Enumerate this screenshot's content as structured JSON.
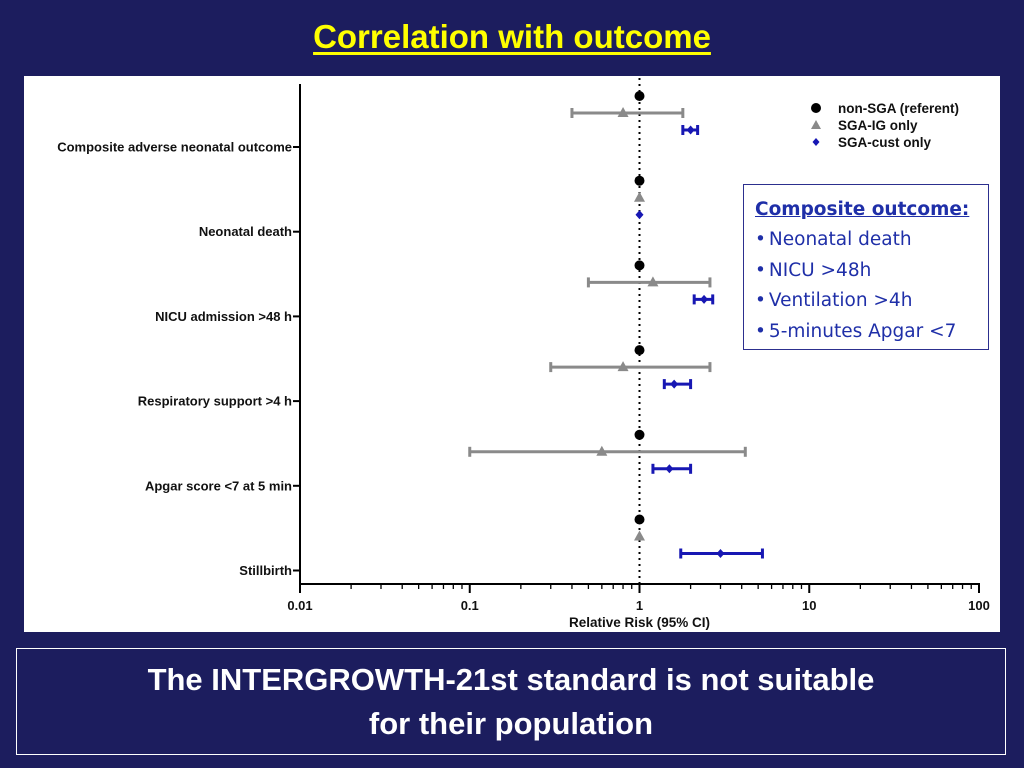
{
  "slide": {
    "title": "Correlation with outcome",
    "conclusion_line1": "The INTERGROWTH-21st standard is not suitable",
    "conclusion_line2": "for their population"
  },
  "composite_box": {
    "title": "Composite outcome:",
    "items": [
      "Neonatal death",
      "NICU >48h",
      "Ventilation >4h",
      "5-minutes Apgar <7"
    ]
  },
  "colors": {
    "background": "#1c1d5e",
    "title": "#ffff00",
    "referent": "#000000",
    "sga_ig": "#8a8a8a",
    "sga_cust": "#1717b3"
  },
  "chart_data": {
    "type": "forest",
    "xlabel": "Relative Risk (95% CI)",
    "xscale": "log",
    "xlim": [
      0.01,
      100
    ],
    "xticks": [
      0.01,
      0.1,
      1,
      10,
      100
    ],
    "xtick_labels": [
      "0.01",
      "0.1",
      "1",
      "10",
      "100"
    ],
    "reference_line": 1,
    "legend_position": "top-right",
    "legend": [
      {
        "key": "referent",
        "label": "non-SGA (referent)",
        "marker": "circle"
      },
      {
        "key": "sga_ig",
        "label": "SGA-IG only",
        "marker": "triangle"
      },
      {
        "key": "sga_cust",
        "label": "SGA-cust only",
        "marker": "diamond"
      }
    ],
    "outcomes": [
      {
        "label": "Composite adverse neonatal outcome",
        "referent": {
          "rr": 1
        },
        "sga_ig": {
          "rr": 0.8,
          "lo": 0.4,
          "hi": 1.8
        },
        "sga_cust": {
          "rr": 2.0,
          "lo": 1.8,
          "hi": 2.2
        }
      },
      {
        "label": "Neonatal death",
        "referent": {
          "rr": 1
        },
        "sga_ig": {
          "rr": 1.0
        },
        "sga_cust": {
          "rr": 1.0
        }
      },
      {
        "label": "NICU admission >48 h",
        "referent": {
          "rr": 1
        },
        "sga_ig": {
          "rr": 1.2,
          "lo": 0.5,
          "hi": 2.6
        },
        "sga_cust": {
          "rr": 2.4,
          "lo": 2.1,
          "hi": 2.7
        }
      },
      {
        "label": "Respiratory support >4 h",
        "referent": {
          "rr": 1
        },
        "sga_ig": {
          "rr": 0.8,
          "lo": 0.3,
          "hi": 2.6
        },
        "sga_cust": {
          "rr": 1.6,
          "lo": 1.4,
          "hi": 2.0
        }
      },
      {
        "label": "Apgar score <7 at 5 min",
        "referent": {
          "rr": 1
        },
        "sga_ig": {
          "rr": 0.6,
          "lo": 0.1,
          "hi": 4.2
        },
        "sga_cust": {
          "rr": 1.5,
          "lo": 1.2,
          "hi": 2.0
        }
      },
      {
        "label": "Stillbirth",
        "referent": {
          "rr": 1
        },
        "sga_ig": {
          "rr": 1.0
        },
        "sga_cust": {
          "rr": 3.0,
          "lo": 1.75,
          "hi": 5.3
        }
      }
    ]
  }
}
